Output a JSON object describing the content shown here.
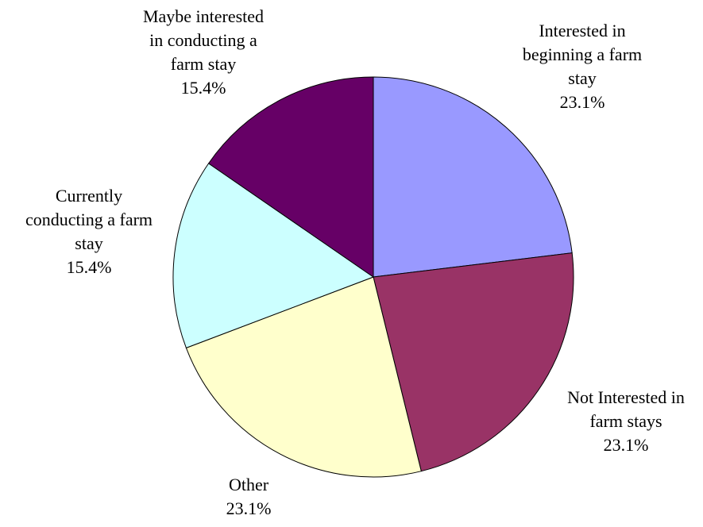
{
  "chart_data": {
    "type": "pie",
    "title": "",
    "start_angle_deg": 0,
    "direction": "clockwise",
    "slices": [
      {
        "label_lines": [
          "Interested in",
          "beginning a farm",
          "stay"
        ],
        "value": 23.1,
        "value_label": "23.1%",
        "color": "#9999FF"
      },
      {
        "label_lines": [
          "Not Interested in",
          "farm stays"
        ],
        "value": 23.1,
        "value_label": "23.1%",
        "color": "#993366"
      },
      {
        "label_lines": [
          "Other"
        ],
        "value": 23.1,
        "value_label": "23.1%",
        "color": "#FFFFCC"
      },
      {
        "label_lines": [
          "Currently",
          "conducting a farm",
          "stay"
        ],
        "value": 15.4,
        "value_label": "15.4%",
        "color": "#CCFFFF"
      },
      {
        "label_lines": [
          "Maybe interested",
          "in conducting a",
          "farm stay"
        ],
        "value": 15.4,
        "value_label": "15.4%",
        "color": "#660066"
      }
    ]
  }
}
